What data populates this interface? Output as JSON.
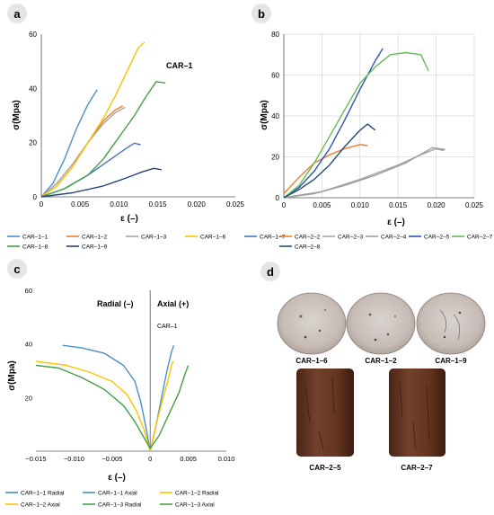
{
  "panels": {
    "a": {
      "label": "a"
    },
    "b": {
      "label": "b"
    },
    "c": {
      "label": "c"
    },
    "d": {
      "label": "d"
    }
  },
  "specimens": {
    "top": [
      "CAR–1–6",
      "CAR–1–2",
      "CAR–1–9"
    ],
    "bottom": [
      "CAR–2–5",
      "CAR–2–7"
    ]
  },
  "chart_data": [
    {
      "panel": "a",
      "type": "line",
      "annotation": "CAR–1",
      "xlabel": "ε (–)",
      "ylabel": "σ(Mpa)",
      "xlim": [
        0,
        0.025
      ],
      "ylim": [
        0,
        60
      ],
      "xticks": [
        0,
        0.005,
        0.01,
        0.015,
        0.02,
        0.025
      ],
      "xtick_labels": [
        "0",
        "0.005",
        "0.010",
        "0.015",
        "0.020",
        "0.025"
      ],
      "yticks": [
        0,
        20,
        40,
        60
      ],
      "ytick_labels": [
        "0",
        "20",
        "40",
        "60"
      ],
      "grid": false,
      "legend_position": "bottom",
      "series": [
        {
          "name": "CAR–1–1",
          "color": "#4a90c8",
          "points": [
            [
              0,
              0
            ],
            [
              0.0015,
              5
            ],
            [
              0.003,
              14
            ],
            [
              0.0045,
              25
            ],
            [
              0.006,
              34
            ],
            [
              0.0072,
              39.5
            ]
          ]
        },
        {
          "name": "CAR–1–2",
          "color": "#ed7d31",
          "points": [
            [
              0,
              0
            ],
            [
              0.002,
              4
            ],
            [
              0.004,
              11
            ],
            [
              0.006,
              20
            ],
            [
              0.008,
              28
            ],
            [
              0.0095,
              32
            ],
            [
              0.0105,
              33.5
            ]
          ]
        },
        {
          "name": "CAR–1–3",
          "color": "#a5a5a5",
          "points": [
            [
              0,
              0
            ],
            [
              0.002,
              5
            ],
            [
              0.004,
              12
            ],
            [
              0.006,
              20
            ],
            [
              0.008,
              27
            ],
            [
              0.0095,
              31
            ],
            [
              0.0108,
              33
            ]
          ]
        },
        {
          "name": "CAR–1–6",
          "color": "#ffc000",
          "points": [
            [
              0,
              0
            ],
            [
              0.002,
              4
            ],
            [
              0.004,
              11
            ],
            [
              0.006,
              20
            ],
            [
              0.008,
              29
            ],
            [
              0.0095,
              37
            ],
            [
              0.011,
              46
            ],
            [
              0.0125,
              55
            ],
            [
              0.0133,
              57
            ]
          ]
        },
        {
          "name": "CAR–1–7",
          "color": "#4472c4",
          "points": [
            [
              0,
              0
            ],
            [
              0.003,
              3
            ],
            [
              0.006,
              8
            ],
            [
              0.009,
              14
            ],
            [
              0.011,
              18
            ],
            [
              0.012,
              19.8
            ],
            [
              0.0128,
              19.2
            ]
          ]
        },
        {
          "name": "CAR–1–8",
          "color": "#43a047",
          "points": [
            [
              0,
              0
            ],
            [
              0.003,
              3
            ],
            [
              0.006,
              8
            ],
            [
              0.008,
              14
            ],
            [
              0.01,
              22
            ],
            [
              0.012,
              30
            ],
            [
              0.0135,
              37
            ],
            [
              0.0148,
              42.5
            ],
            [
              0.016,
              42
            ]
          ]
        },
        {
          "name": "CAR–1–9",
          "color": "#264478",
          "points": [
            [
              0,
              0
            ],
            [
              0.004,
              1.5
            ],
            [
              0.008,
              4
            ],
            [
              0.011,
              7
            ],
            [
              0.013,
              9.2
            ],
            [
              0.0145,
              10.5
            ],
            [
              0.0155,
              10
            ]
          ]
        }
      ]
    },
    {
      "panel": "b",
      "type": "line",
      "xlabel": "ε (–)",
      "ylabel": "σ(Mpa)",
      "xlim": [
        0,
        0.025
      ],
      "ylim": [
        0,
        80
      ],
      "xticks": [
        0,
        0.005,
        0.01,
        0.015,
        0.02,
        0.025
      ],
      "xtick_labels": [
        "0",
        "0.005",
        "0.010",
        "0.015",
        "0.020",
        "0.025"
      ],
      "yticks": [
        0,
        20,
        40,
        60,
        80
      ],
      "ytick_labels": [
        "0",
        "20",
        "40",
        "60",
        "80"
      ],
      "grid": true,
      "legend_position": "bottom",
      "series": [
        {
          "name": "CAR–2–2",
          "color": "#ed7d31",
          "points": [
            [
              0,
              2
            ],
            [
              0.002,
              10
            ],
            [
              0.004,
              17
            ],
            [
              0.006,
              21
            ],
            [
              0.008,
              24
            ],
            [
              0.01,
              26
            ],
            [
              0.011,
              25.5
            ]
          ]
        },
        {
          "name": "CAR–2–3",
          "color": "#a5a5a5",
          "points": [
            [
              0,
              0
            ],
            [
              0.005,
              3
            ],
            [
              0.01,
              9
            ],
            [
              0.015,
              16
            ],
            [
              0.018,
              21
            ],
            [
              0.02,
              24
            ],
            [
              0.021,
              23
            ]
          ]
        },
        {
          "name": "CAR–2–4",
          "color": "#9e9e9e",
          "points": [
            [
              0,
              0
            ],
            [
              0.004,
              2
            ],
            [
              0.008,
              6
            ],
            [
              0.012,
              11
            ],
            [
              0.016,
              17
            ],
            [
              0.0195,
              24.5
            ],
            [
              0.0212,
              23.5
            ]
          ]
        },
        {
          "name": "CAR–2–5",
          "color": "#2c55b8",
          "points": [
            [
              0,
              0
            ],
            [
              0.002,
              5
            ],
            [
              0.004,
              13
            ],
            [
              0.006,
              24
            ],
            [
              0.008,
              38
            ],
            [
              0.01,
              53
            ],
            [
              0.012,
              67
            ],
            [
              0.013,
              73
            ]
          ]
        },
        {
          "name": "CAR–2–7",
          "color": "#66bb55",
          "points": [
            [
              0,
              0
            ],
            [
              0.002,
              6
            ],
            [
              0.004,
              17
            ],
            [
              0.006,
              30
            ],
            [
              0.008,
              43
            ],
            [
              0.01,
              56
            ],
            [
              0.012,
              64
            ],
            [
              0.014,
              70
            ],
            [
              0.016,
              71
            ],
            [
              0.018,
              70
            ],
            [
              0.019,
              62
            ]
          ]
        },
        {
          "name": "CAR–2–8",
          "color": "#1f4e79",
          "points": [
            [
              0,
              0
            ],
            [
              0.002,
              4
            ],
            [
              0.004,
              9
            ],
            [
              0.006,
              16
            ],
            [
              0.008,
              25
            ],
            [
              0.01,
              33
            ],
            [
              0.011,
              36
            ],
            [
              0.012,
              33
            ]
          ]
        }
      ]
    },
    {
      "panel": "c",
      "type": "line",
      "annotation": "CAR–1",
      "region_labels": [
        "Radial (–)",
        "Axial (+)"
      ],
      "xlabel": "ε (–)",
      "ylabel": "σ(Mpa)",
      "xlim": [
        -0.015,
        0.01
      ],
      "ylim": [
        0,
        60
      ],
      "xticks": [
        -0.015,
        -0.01,
        -0.005,
        0,
        0.005,
        0.01
      ],
      "xtick_labels": [
        "−0.015",
        "−0.010",
        "−0.005",
        "0",
        "0.005",
        "0.010"
      ],
      "yticks": [
        20,
        40,
        60
      ],
      "ytick_labels": [
        "20",
        "40",
        "60"
      ],
      "grid": false,
      "legend_position": "bottom",
      "series": [
        {
          "name": "CAR–1–1 Radial",
          "color": "#4a90c8",
          "points": [
            [
              0,
              0
            ],
            [
              -0.0005,
              8
            ],
            [
              -0.0012,
              18
            ],
            [
              -0.002,
              26
            ],
            [
              -0.0035,
              32
            ],
            [
              -0.006,
              36.5
            ],
            [
              -0.009,
              38.5
            ],
            [
              -0.0115,
              39.5
            ]
          ]
        },
        {
          "name": "CAR–1–1 Axial",
          "color": "#4a90c8",
          "points": [
            [
              0,
              0
            ],
            [
              0.0008,
              10
            ],
            [
              0.0015,
              20
            ],
            [
              0.0022,
              30
            ],
            [
              0.0028,
              37
            ],
            [
              0.0031,
              39.5
            ]
          ]
        },
        {
          "name": "CAR–1–2 Radial",
          "color": "#ffc000",
          "points": [
            [
              0,
              0
            ],
            [
              -0.0008,
              8
            ],
            [
              -0.0018,
              15
            ],
            [
              -0.003,
              21
            ],
            [
              -0.005,
              26
            ],
            [
              -0.008,
              29.5
            ],
            [
              -0.011,
              32
            ],
            [
              -0.015,
              33.5
            ]
          ]
        },
        {
          "name": "CAR–1–2 Axial",
          "color": "#ffc000",
          "points": [
            [
              0,
              0
            ],
            [
              0.0008,
              10
            ],
            [
              0.0016,
              19
            ],
            [
              0.0024,
              27
            ],
            [
              0.0028,
              32
            ],
            [
              0.003,
              33.5
            ]
          ]
        },
        {
          "name": "CAR–1–3 Radial",
          "color": "#43a047",
          "points": [
            [
              0,
              1
            ],
            [
              -0.001,
              6
            ],
            [
              -0.002,
              11
            ],
            [
              -0.0035,
              17
            ],
            [
              -0.006,
              23
            ],
            [
              -0.009,
              27.5
            ],
            [
              -0.012,
              31
            ],
            [
              -0.015,
              32
            ]
          ]
        },
        {
          "name": "CAR–1–3 Axial",
          "color": "#43a047",
          "points": [
            [
              0,
              1
            ],
            [
              0.0012,
              6
            ],
            [
              0.0025,
              14
            ],
            [
              0.0038,
              22
            ],
            [
              0.0046,
              29
            ],
            [
              0.005,
              32
            ]
          ]
        }
      ]
    }
  ]
}
